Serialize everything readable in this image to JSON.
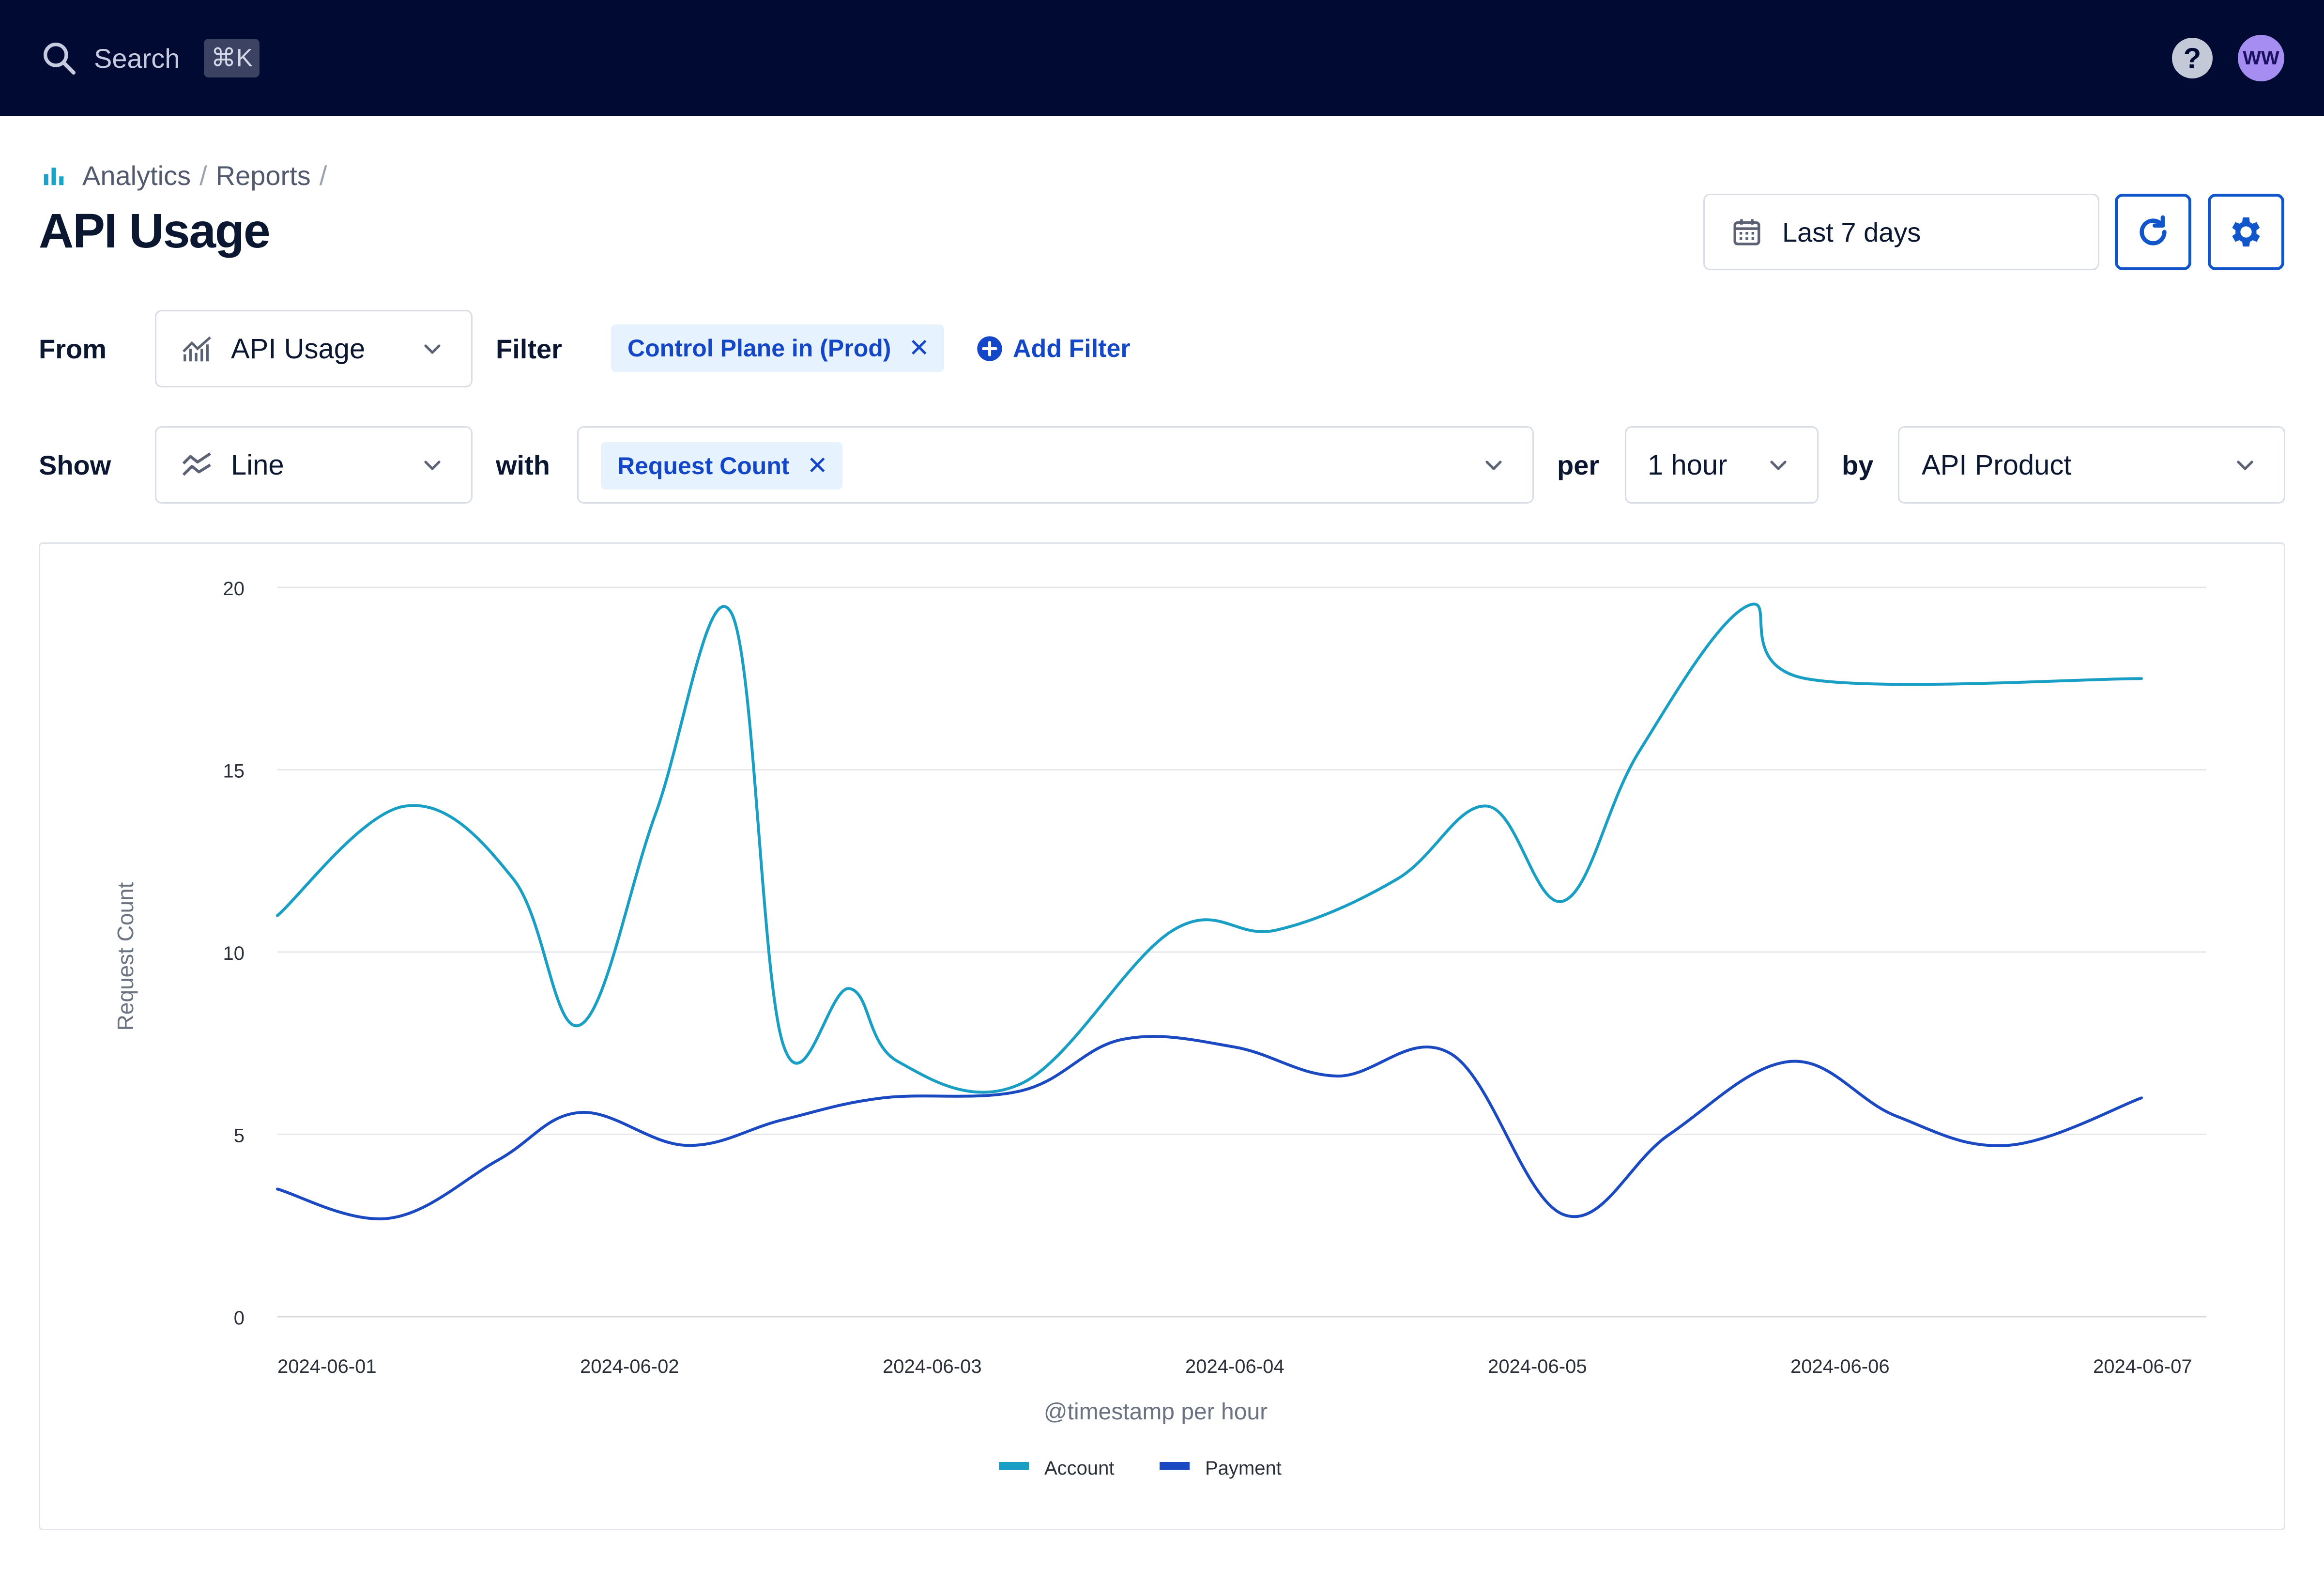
{
  "topbar": {
    "search_label": "Search",
    "search_shortcut": "⌘K",
    "help_label": "?",
    "avatar_initials": "WW"
  },
  "breadcrumb": {
    "items": [
      "Analytics",
      "Reports"
    ],
    "separator": "/"
  },
  "page": {
    "title": "API Usage"
  },
  "toolbar": {
    "date_range": "Last 7 days",
    "refresh_icon": "refresh-icon",
    "settings_icon": "gear-icon"
  },
  "controls": {
    "from_label": "From",
    "from_value": "API Usage",
    "filter_label": "Filter",
    "filter_chip": "Control Plane in (Prod)",
    "add_filter_label": "Add Filter",
    "show_label": "Show",
    "show_value": "Line",
    "with_label": "with",
    "metric_chip": "Request Count",
    "per_label": "per",
    "per_value": "1 hour",
    "by_label": "by",
    "by_value": "API Product"
  },
  "chart_data": {
    "type": "line",
    "xlabel": "@timestamp per hour",
    "ylabel": "Request Count",
    "ylim": [
      0,
      21
    ],
    "yticks": [
      0,
      5,
      10,
      15,
      20
    ],
    "xticks": [
      "2024-06-01",
      "2024-06-02",
      "2024-06-03",
      "2024-06-04",
      "2024-06-05",
      "2024-06-06",
      "2024-06-07"
    ],
    "grid": true,
    "legend_position": "bottom-center",
    "series": [
      {
        "name": "Account",
        "color": "#1a9fc4",
        "x": [
          0,
          0.42,
          0.78,
          1.0,
          1.25,
          1.5,
          1.67,
          1.89,
          2.05,
          2.46,
          2.96,
          3.3,
          3.7,
          4.0,
          4.25,
          4.5,
          4.86,
          5.05,
          5.26,
          5.5,
          5.72,
          6.0,
          6.16
        ],
        "values": [
          11,
          14,
          12,
          8,
          13.8,
          19.3,
          7.5,
          9,
          7,
          6.4,
          10.6,
          10.6,
          12,
          14,
          11.4,
          15.5,
          19.5,
          17.5,
          17.5,
          17.5,
          17.5,
          17.5,
          17.5
        ]
      },
      {
        "name": "Payment",
        "color": "#1b49c1",
        "x": [
          0,
          0.37,
          0.73,
          1.0,
          1.35,
          1.67,
          2.0,
          2.46,
          2.79,
          3.16,
          3.5,
          3.88,
          4.25,
          4.6,
          5.0,
          5.35,
          5.72,
          6.16
        ],
        "values": [
          3.5,
          2.7,
          4.3,
          5.6,
          4.7,
          5.4,
          6,
          6.2,
          7.6,
          7.4,
          6.6,
          7.2,
          2.8,
          5,
          7,
          5.5,
          4.7,
          6
        ]
      }
    ]
  }
}
